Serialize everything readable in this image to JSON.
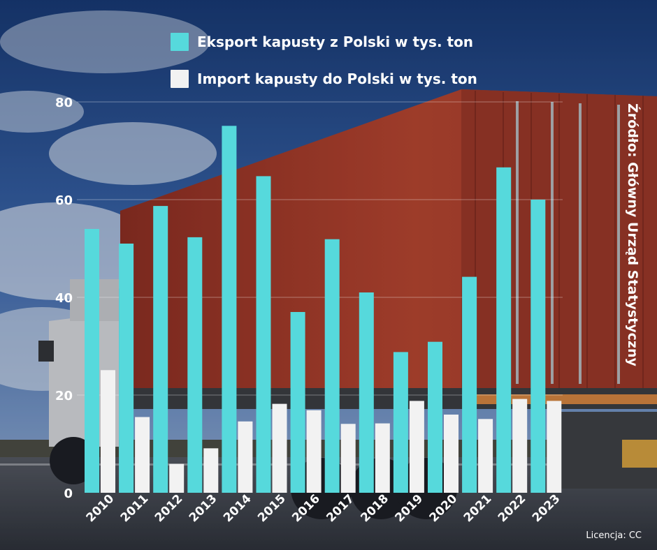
{
  "legend": {
    "export_label": "Eksport kapusty z Polski w tys. ton",
    "import_label": "Import kapusty do Polski w tys. ton"
  },
  "source_text": "Źródło: Główny Urząd Statystyczny",
  "license_text": "Licencja: CC",
  "colors": {
    "export": "#56D9DC",
    "import": "#F2F2F2"
  },
  "chart_data": {
    "type": "bar",
    "categories": [
      "2010",
      "2011",
      "2012",
      "2013",
      "2014",
      "2015",
      "2016",
      "2017",
      "2018",
      "2019",
      "2020",
      "2021",
      "2022",
      "2023"
    ],
    "series": [
      {
        "name": "Eksport kapusty z Polski w tys. ton",
        "values": [
          54,
          51,
          58.7,
          52.3,
          75.1,
          64.8,
          37,
          51.9,
          41,
          28.8,
          30.9,
          44.2,
          66.6,
          60
        ]
      },
      {
        "name": "Import kapusty do Polski w tys. ton",
        "values": [
          25.1,
          15.5,
          5.9,
          9.1,
          14.6,
          18.2,
          16.9,
          14.1,
          14.2,
          18.8,
          16,
          15.1,
          19.2,
          18.8
        ]
      }
    ],
    "yticks": [
      0,
      20,
      40,
      60,
      80
    ],
    "ylim": [
      0,
      80
    ],
    "grid": true,
    "legend_position": "top"
  }
}
